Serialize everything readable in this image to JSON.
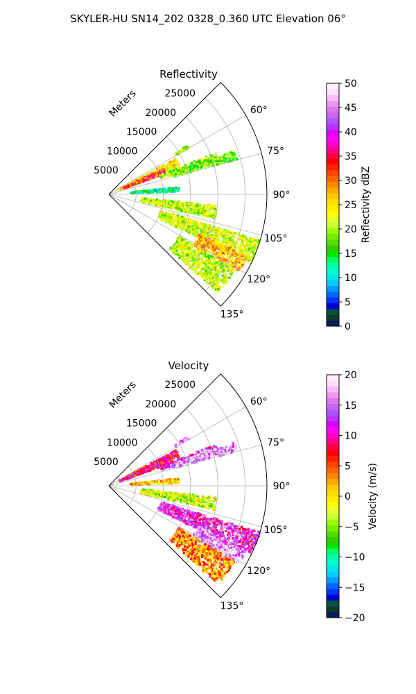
{
  "figure_title": "SKYLER-HU  SN14_202  0328_0.360 UTC Elevation 06°",
  "chart_data": [
    {
      "type": "heatmap",
      "projection": "polar-sector",
      "title": "Reflectivity",
      "radial_label": "Meters",
      "radial_ticks": [
        5000,
        10000,
        15000,
        20000,
        25000
      ],
      "radial_tick_labels": [
        "5000",
        "10000",
        "15000",
        "20000",
        "25000"
      ],
      "rmax": 29000,
      "theta_range_deg": [
        45,
        135
      ],
      "theta_ticks": [
        60,
        75,
        90,
        105,
        120,
        135
      ],
      "theta_tick_labels": [
        "60°",
        "75°",
        "90°",
        "105°",
        "120°",
        "135°"
      ],
      "grid": true,
      "colorbar": {
        "label": "Reflectivity dBZ",
        "range": [
          0,
          50
        ],
        "ticks": [
          0,
          5,
          10,
          15,
          20,
          25,
          30,
          35,
          40,
          45,
          50
        ],
        "tick_labels": [
          "0",
          "5",
          "10",
          "15",
          "20",
          "25",
          "30",
          "35",
          "40",
          "45",
          "50"
        ],
        "colors": [
          "#0a1a5a",
          "#0d3a2a",
          "#0a5040",
          "#0000cc",
          "#0033ff",
          "#0066ff",
          "#0099ff",
          "#00ccff",
          "#00e5e5",
          "#00ffcc",
          "#00ffaa",
          "#00ff66",
          "#00e600",
          "#33cc00",
          "#55dd00",
          "#77ee00",
          "#99ff00",
          "#ccff33",
          "#e5ff33",
          "#ffff00",
          "#ffee00",
          "#ffdd00",
          "#ffcc00",
          "#ffaa00",
          "#ff8800",
          "#ff6600",
          "#ff4400",
          "#ff2200",
          "#ff0000",
          "#ff0044",
          "#ff0088",
          "#ff00cc",
          "#ff00ff",
          "#dd00ff",
          "#bb33ff",
          "#aa55ff",
          "#cc66ee",
          "#dd77ee",
          "#ee99ee",
          "#ffbbff",
          "#ffddff",
          "#fff0ff"
        ]
      },
      "echo_regions": [
        {
          "theta": [
            62,
            68
          ],
          "r": [
            2000,
            14000
          ],
          "value": 25
        },
        {
          "theta": [
            65,
            70
          ],
          "r": [
            3000,
            11000
          ],
          "value": 33
        },
        {
          "theta": [
            69,
            73
          ],
          "r": [
            10000,
            21000
          ],
          "value": 20
        },
        {
          "theta": [
            71,
            75
          ],
          "r": [
            12000,
            24500
          ],
          "value": 18
        },
        {
          "theta": [
            58,
            60
          ],
          "r": [
            14000,
            17000
          ],
          "value": 21
        },
        {
          "theta": [
            84,
            88
          ],
          "r": [
            4000,
            13000
          ],
          "value": 13
        },
        {
          "theta": [
            96,
            103
          ],
          "r": [
            6000,
            20000
          ],
          "value": 21
        },
        {
          "theta": [
            107,
            116
          ],
          "r": [
            10000,
            29000
          ],
          "value": 22
        },
        {
          "theta": [
            114,
            121
          ],
          "r": [
            18000,
            28000
          ],
          "value": 27
        },
        {
          "theta": [
            121,
            132
          ],
          "r": [
            15000,
            27000
          ],
          "value": 21
        }
      ]
    },
    {
      "type": "heatmap",
      "projection": "polar-sector",
      "title": "Velocity",
      "radial_label": "Meters",
      "radial_ticks": [
        5000,
        10000,
        15000,
        20000,
        25000
      ],
      "radial_tick_labels": [
        "5000",
        "10000",
        "15000",
        "20000",
        "25000"
      ],
      "rmax": 29000,
      "theta_range_deg": [
        45,
        135
      ],
      "theta_ticks": [
        60,
        75,
        90,
        105,
        120,
        135
      ],
      "theta_tick_labels": [
        "60°",
        "75°",
        "90°",
        "105°",
        "120°",
        "135°"
      ],
      "grid": true,
      "colorbar": {
        "label": "Velocity (m/s)",
        "range": [
          -20,
          20
        ],
        "ticks": [
          -20,
          -15,
          -10,
          -5,
          0,
          5,
          10,
          15,
          20
        ],
        "tick_labels": [
          "−20",
          "−15",
          "−10",
          "−5",
          "0",
          "5",
          "10",
          "15",
          "20"
        ],
        "colors": [
          "#0a1a5a",
          "#0d3a2a",
          "#0a5040",
          "#0000cc",
          "#0033ff",
          "#0066ff",
          "#0099ff",
          "#00ccff",
          "#00e5e5",
          "#00ffcc",
          "#00ffaa",
          "#00ff66",
          "#00e600",
          "#33cc00",
          "#55dd00",
          "#77ee00",
          "#99ff00",
          "#ccff33",
          "#e5ff33",
          "#ffff00",
          "#ffee00",
          "#ffdd00",
          "#ffcc00",
          "#ffaa00",
          "#ff8800",
          "#ff6600",
          "#ff4400",
          "#ff2200",
          "#ff0000",
          "#ff0044",
          "#ff0088",
          "#ff00cc",
          "#ff00ff",
          "#dd00ff",
          "#bb33ff",
          "#aa55ff",
          "#cc66ee",
          "#dd77ee",
          "#ee99ee",
          "#ffbbff",
          "#ffddff",
          "#fff0ff"
        ]
      },
      "echo_regions": [
        {
          "theta": [
            62,
            68
          ],
          "r": [
            2000,
            14000
          ],
          "value": 8
        },
        {
          "theta": [
            65,
            70
          ],
          "r": [
            3000,
            11000
          ],
          "value": 9
        },
        {
          "theta": [
            69,
            73
          ],
          "r": [
            10000,
            21000
          ],
          "value": 11
        },
        {
          "theta": [
            71,
            75
          ],
          "r": [
            12000,
            24500
          ],
          "value": 17
        },
        {
          "theta": [
            58,
            60
          ],
          "r": [
            14000,
            17000
          ],
          "value": 16
        },
        {
          "theta": [
            84,
            88
          ],
          "r": [
            4000,
            13000
          ],
          "value": 1
        },
        {
          "theta": [
            96,
            103
          ],
          "r": [
            6000,
            20000
          ],
          "value": -3
        },
        {
          "theta": [
            107,
            116
          ],
          "r": [
            10000,
            29000
          ],
          "value": 12
        },
        {
          "theta": [
            114,
            121
          ],
          "r": [
            18000,
            28000
          ],
          "value": 16
        },
        {
          "theta": [
            121,
            132
          ],
          "r": [
            15000,
            27000
          ],
          "value": 3
        }
      ]
    }
  ]
}
